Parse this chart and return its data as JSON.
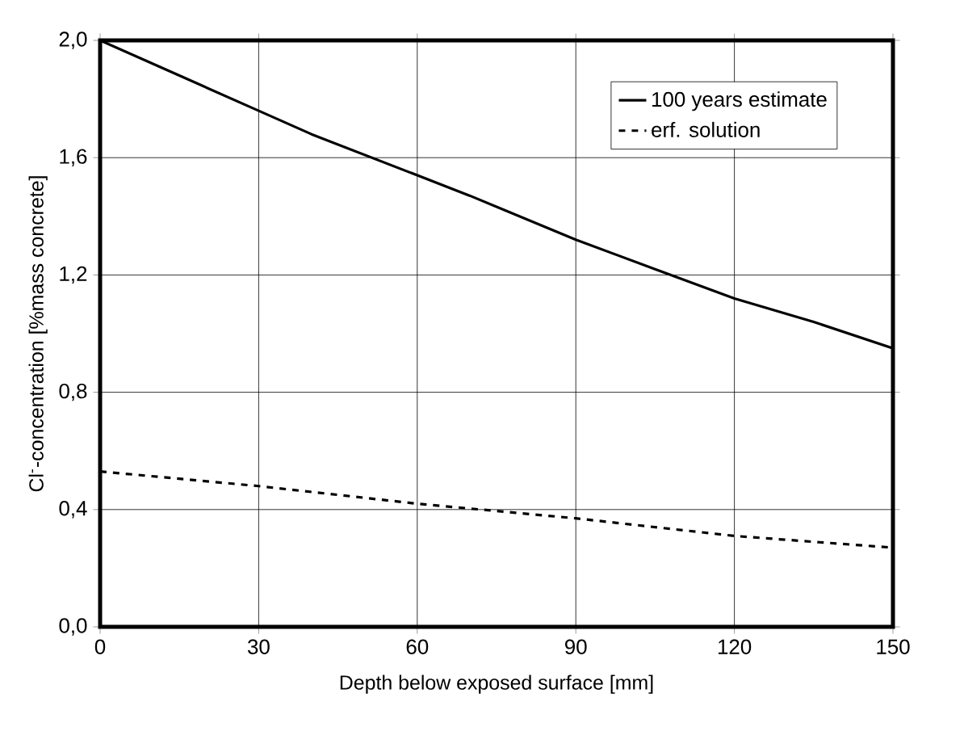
{
  "chart_data": {
    "type": "line",
    "xlabel": "Depth below exposed surface [mm]",
    "ylabel": "Cl$^{-}$-concentration [%mass concrete]",
    "x": [
      0,
      15,
      30,
      40,
      70,
      90,
      105,
      120,
      135,
      150
    ],
    "series": [
      {
        "name": "100 years estimate",
        "color": "#000000",
        "line_style": "solid",
        "values": [
          2.0,
          1.88,
          1.76,
          1.68,
          1.47,
          1.32,
          1.22,
          1.12,
          1.04,
          0.95
        ]
      },
      {
        "name": "erf. solution",
        "color": "#000000",
        "line_style": "dashed",
        "x": [
          0,
          30,
          60,
          90,
          120,
          150
        ],
        "values": [
          0.53,
          0.48,
          0.42,
          0.37,
          0.31,
          0.27
        ]
      }
    ],
    "xlim": [
      0,
      150
    ],
    "ylim": [
      0,
      2.0
    ],
    "xticks": [
      0,
      30,
      60,
      90,
      120,
      150
    ],
    "yticks": [
      {
        "value": 0,
        "label": "0,0"
      },
      {
        "value": 0.4,
        "label": "0,4"
      },
      {
        "value": 0.8,
        "label": "0,8"
      },
      {
        "value": 1.2,
        "label": "1,2"
      },
      {
        "value": 1.6,
        "label": "1,6"
      },
      {
        "value": 2.0,
        "label": "2,0"
      }
    ],
    "grid": true,
    "legend": "top right",
    "marker": "none"
  }
}
